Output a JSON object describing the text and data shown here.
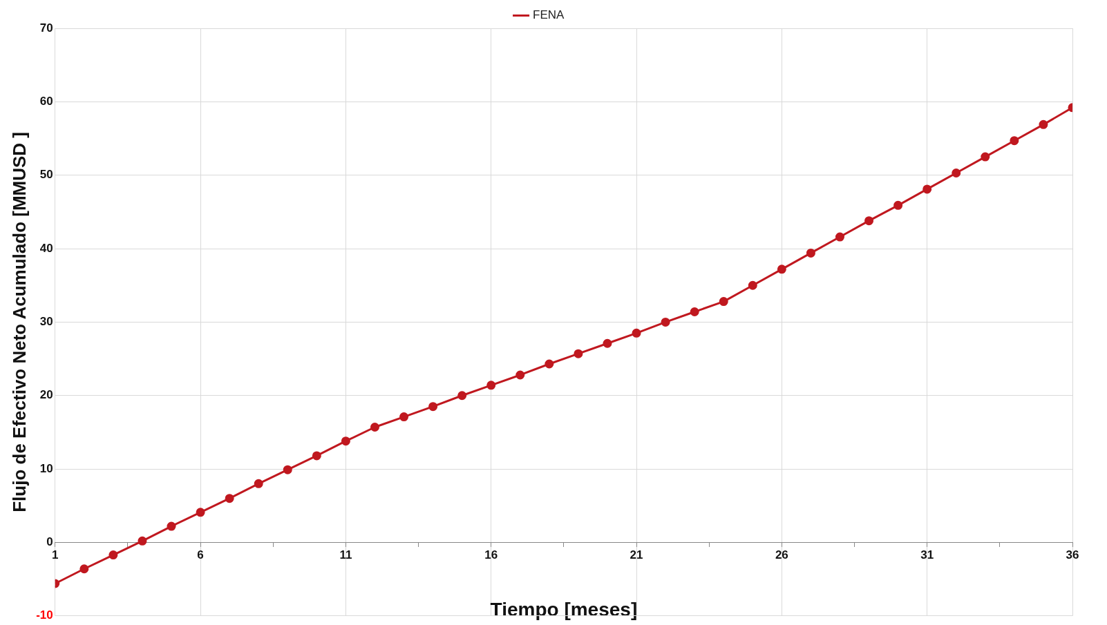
{
  "chart_data": {
    "type": "line",
    "xlabel": "Tiempo [meses]",
    "ylabel": "Flujo de Efectivo Neto Acumulado [MMUSD ]",
    "x": [
      1,
      2,
      3,
      4,
      5,
      6,
      7,
      8,
      9,
      10,
      11,
      12,
      13,
      14,
      15,
      16,
      17,
      18,
      19,
      20,
      21,
      22,
      23,
      24,
      25,
      26,
      27,
      28,
      29,
      30,
      31,
      32,
      33,
      34,
      35,
      36
    ],
    "series": [
      {
        "name": "FENA",
        "color": "#c0181f",
        "values": [
          -5.6,
          -3.6,
          -1.7,
          0.2,
          2.2,
          4.1,
          6.0,
          8.0,
          9.9,
          11.8,
          13.8,
          15.7,
          17.1,
          18.5,
          20.0,
          21.4,
          22.8,
          24.3,
          25.7,
          27.1,
          28.5,
          30.0,
          31.4,
          32.8,
          35.0,
          37.2,
          39.4,
          41.6,
          43.8,
          45.9,
          48.1,
          50.3,
          52.5,
          54.7,
          56.9,
          59.2
        ]
      }
    ],
    "xlim": [
      1,
      36
    ],
    "xticks": [
      1,
      {
        "value": 3.5,
        "label": null
      },
      6,
      {
        "value": 8.5,
        "label": null
      },
      11,
      {
        "value": 13.5,
        "label": null
      },
      16,
      {
        "value": 18.5,
        "label": null
      },
      21,
      {
        "value": 23.5,
        "label": null
      },
      26,
      {
        "value": 28.5,
        "label": null
      },
      31,
      {
        "value": 33.5,
        "label": null
      },
      36
    ],
    "ylim": [
      -10,
      70
    ],
    "yticks": [
      -10,
      0,
      10,
      20,
      30,
      40,
      50,
      60,
      70
    ],
    "grid": true,
    "legend": "top",
    "marker": "circle",
    "line_style": "solid"
  }
}
